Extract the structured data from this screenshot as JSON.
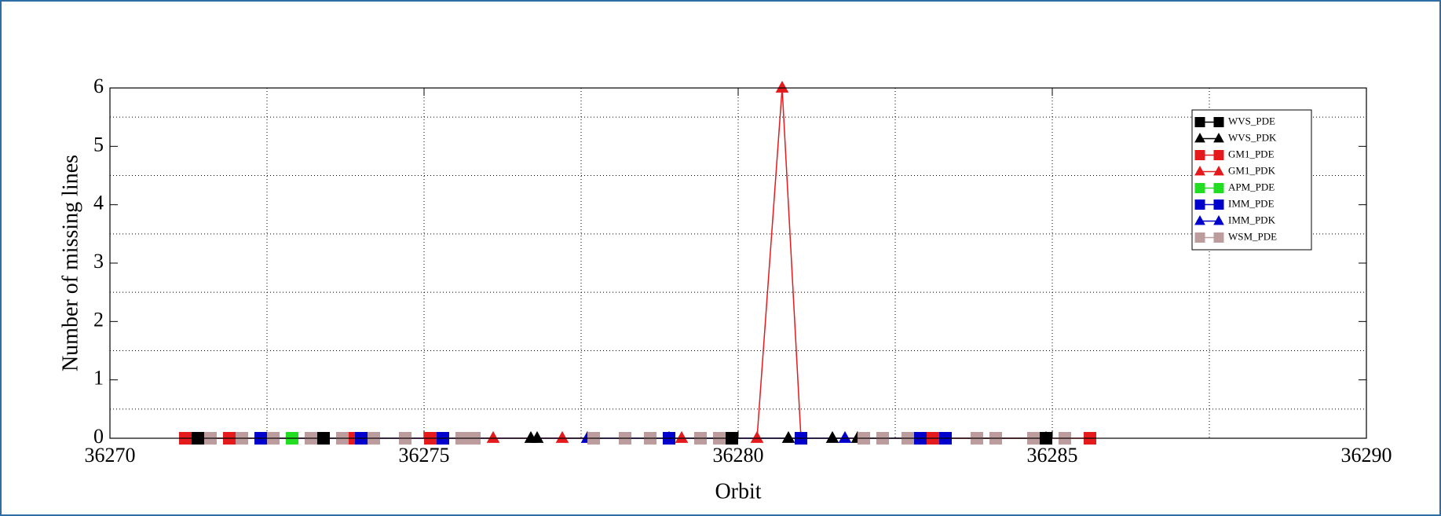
{
  "chart_data": {
    "type": "line",
    "xlabel": "Orbit",
    "ylabel": "Number of missing lines",
    "xlim": [
      36270,
      36290
    ],
    "xticks": [
      36270,
      36275,
      36280,
      36285,
      36290
    ],
    "ylim": [
      0,
      6
    ],
    "yticks": [
      0,
      1,
      2,
      3,
      4,
      5,
      6
    ],
    "grid": true,
    "xgrid": [
      36272.5,
      36275,
      36277.5,
      36280,
      36282.5,
      36285,
      36287.5
    ],
    "ygrid": [
      0.5,
      1.5,
      2.5,
      3.5,
      4.5,
      5.5
    ],
    "legend": "northeast",
    "series": [
      {
        "name": "WVS_PDE",
        "color": "#000000",
        "marker": "square",
        "x": [
          36271.4,
          36273.4,
          36278.2,
          36279.9,
          36284.9
        ],
        "values": [
          0,
          0,
          0,
          0,
          0
        ]
      },
      {
        "name": "WVS_PDK",
        "color": "#000000",
        "marker": "triangle",
        "x": [
          36276.7,
          36276.8,
          36278.9,
          36280.8,
          36281.5,
          36281.9,
          36284.9
        ],
        "values": [
          0,
          0,
          0,
          0,
          0,
          0,
          0
        ]
      },
      {
        "name": "GM1_PDE",
        "color": "#e41a1c",
        "marker": "square",
        "x": [
          36271.2,
          36271.9,
          36273.8,
          36275.1,
          36283.1,
          36285.6
        ],
        "values": [
          0,
          0,
          0,
          0,
          0,
          0
        ]
      },
      {
        "name": "GM1_PDK",
        "color": "#e41a1c",
        "marker": "triangle",
        "x": [
          36276.1,
          36277.2,
          36279.1,
          36280.3,
          36280.7,
          36281.0
        ],
        "values": [
          0,
          0,
          0,
          0,
          6,
          0
        ]
      },
      {
        "name": "APM_PDE",
        "color": "#22dd22",
        "marker": "square",
        "x": [
          36272.9
        ],
        "values": [
          0
        ]
      },
      {
        "name": "IMM_PDE",
        "color": "#0000cc",
        "marker": "square",
        "x": [
          36272.4,
          36274.0,
          36275.3,
          36278.9,
          36281.0,
          36282.9,
          36283.3
        ],
        "values": [
          0,
          0,
          0,
          0,
          0,
          0,
          0
        ]
      },
      {
        "name": "IMM_PDK",
        "color": "#0000cc",
        "marker": "triangle",
        "x": [
          36277.6,
          36281.7
        ],
        "values": [
          0,
          0
        ]
      },
      {
        "name": "WSM_PDE",
        "color": "#bc9c9c",
        "marker": "square",
        "x": [
          36271.6,
          36272.1,
          36272.6,
          36273.2,
          36273.7,
          36274.2,
          36274.7,
          36275.6,
          36275.8,
          36277.7,
          36278.2,
          36278.6,
          36279.4,
          36279.7,
          36282.0,
          36282.3,
          36282.7,
          36283.8,
          36284.1,
          36284.7,
          36285.2
        ],
        "values": [
          0,
          0,
          0,
          0,
          0,
          0,
          0,
          0,
          0,
          0,
          0,
          0,
          0,
          0,
          0,
          0,
          0,
          0,
          0,
          0,
          0
        ]
      }
    ]
  }
}
